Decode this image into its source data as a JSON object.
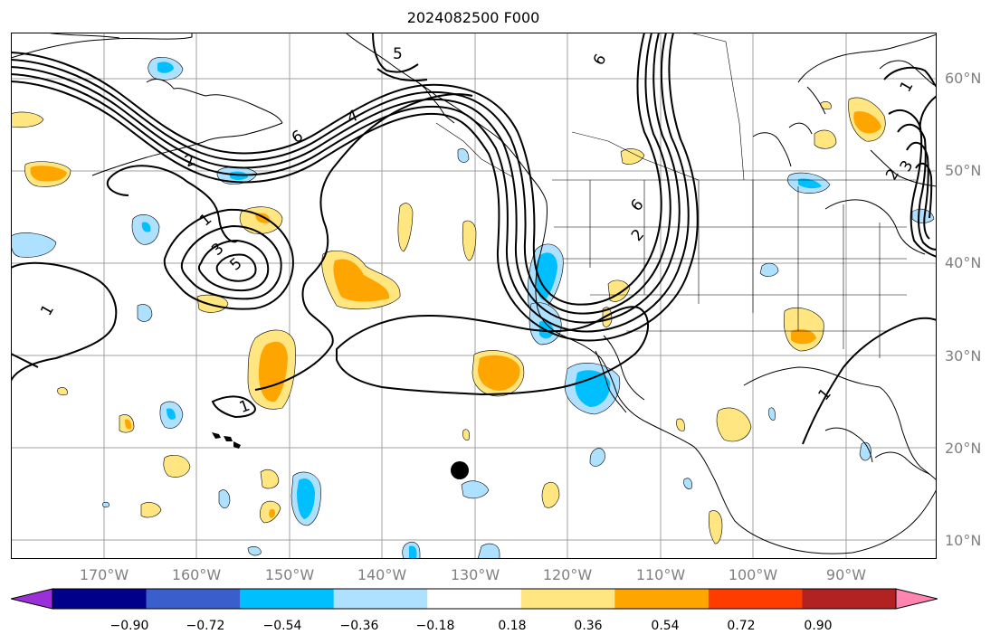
{
  "title": "2024082500 F000",
  "map": {
    "latitude_labels": [
      "60°N",
      "50°N",
      "40°N",
      "30°N",
      "20°N",
      "10°N"
    ],
    "longitude_labels": [
      "170°W",
      "160°W",
      "150°W",
      "140°W",
      "130°W",
      "120°W",
      "110°W",
      "100°W",
      "90°W"
    ],
    "contour_labels": [
      "5",
      "6",
      "4",
      "6",
      "2",
      "1",
      "3",
      "5",
      "1",
      "1",
      "2",
      "6",
      "1",
      "2",
      "3",
      "1"
    ]
  },
  "colorbar": {
    "tick_labels": [
      "−0.90",
      "−0.72",
      "−0.54",
      "−0.36",
      "−0.18",
      "0.18",
      "0.36",
      "0.54",
      "0.72",
      "0.90"
    ],
    "colors": [
      "#9b30d9",
      "#00008b",
      "#3a5fcd",
      "#00bfff",
      "#aee0ff",
      "#ffffff",
      "#ffe680",
      "#ffa500",
      "#ff3c00",
      "#b22222",
      "#ff85b0"
    ],
    "extend": "both"
  }
}
